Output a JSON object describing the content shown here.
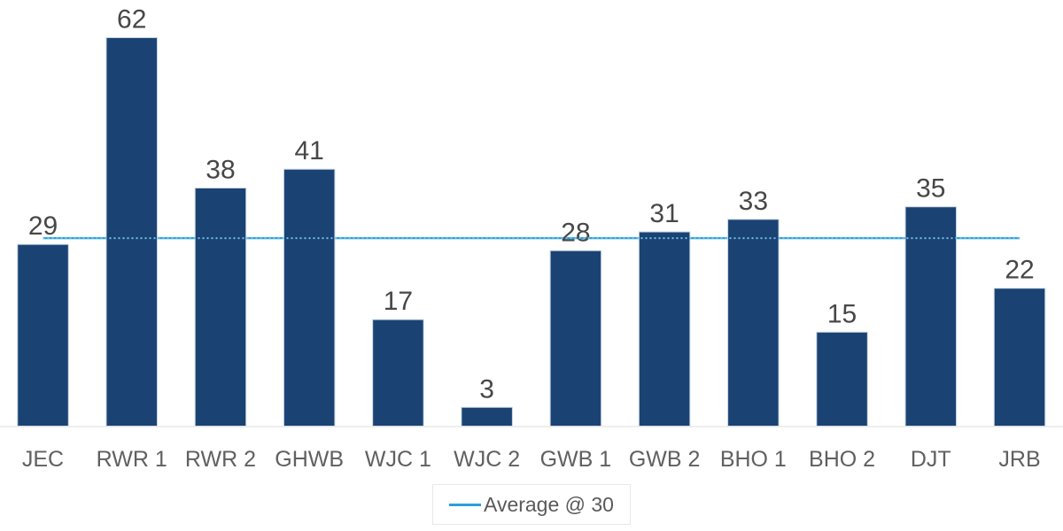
{
  "chart_data": {
    "type": "bar",
    "categories": [
      "JEC",
      "RWR 1",
      "RWR 2",
      "GHWB",
      "WJC 1",
      "WJC 2",
      "GWB 1",
      "GWB 2",
      "BHO 1",
      "BHO 2",
      "DJT",
      "JRB"
    ],
    "values": [
      29,
      62,
      38,
      41,
      17,
      3,
      28,
      31,
      33,
      15,
      35,
      22
    ],
    "value_labels_shown": true,
    "average_line": {
      "value": 30,
      "label": "Average @ 30"
    },
    "legend": {
      "entries": [
        {
          "label": "Average @ 30",
          "swatch": "line"
        }
      ],
      "position": "bottom-center"
    },
    "ylim": [
      0,
      65
    ],
    "grid": false,
    "colors": {
      "bar": "#1a4374",
      "bar_edge": "#c9d5e2",
      "average_line": "#2d9fd9",
      "average_line_dots": "#6fc0e8",
      "value_label": "#474747",
      "category_label": "#606060",
      "axis_line": "#e4e4e4",
      "legend_border": "#e8e8e8",
      "legend_text": "#58595b",
      "background": "#ffffff"
    }
  }
}
